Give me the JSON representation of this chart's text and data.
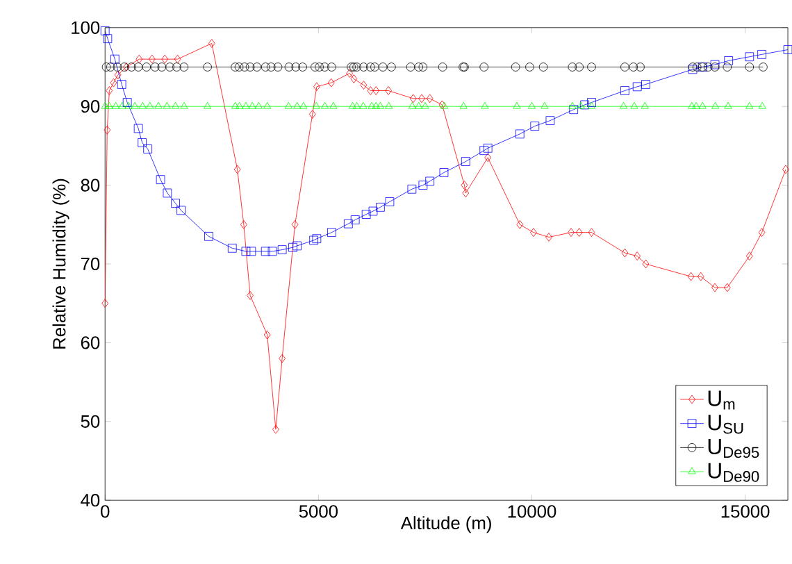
{
  "chart_data": {
    "type": "line",
    "xlabel": "Altitude (m)",
    "ylabel": "Relative Humidity (%)",
    "xlim": [
      0,
      16000
    ],
    "ylim": [
      40,
      100
    ],
    "xticks": [
      0,
      5000,
      10000,
      15000
    ],
    "yticks": [
      40,
      50,
      60,
      70,
      80,
      90,
      100
    ],
    "grid": false,
    "legend": "bottom right",
    "line_style": "solid",
    "series": [
      {
        "name": "U$_{m}$",
        "color": "#ff0000",
        "marker": "diamond",
        "x": [
          0,
          50,
          100,
          200,
          300,
          500,
          800,
          1100,
          1400,
          1700,
          2500,
          3100,
          3250,
          3400,
          3800,
          4000,
          4150,
          4450,
          4860,
          4960,
          5300,
          5730,
          5830,
          6060,
          6220,
          6350,
          6640,
          7220,
          7420,
          7610,
          7900,
          8420,
          8450,
          8970,
          9720,
          10040,
          10400,
          10920,
          11110,
          11400,
          12180,
          12470,
          12670,
          13730,
          13960,
          14290,
          14580,
          15100,
          15390,
          15950
        ],
        "values": [
          65,
          87,
          92,
          93,
          94,
          95,
          96,
          96,
          96,
          96,
          98,
          82,
          75,
          66,
          61,
          49,
          58,
          75,
          89,
          92.5,
          93,
          94.2,
          93.5,
          92.7,
          92,
          92,
          92,
          91,
          91,
          91,
          90.2,
          80,
          79,
          83.5,
          75,
          74,
          73.4,
          74,
          74,
          74,
          71.4,
          71,
          70,
          68.4,
          68.4,
          67,
          67,
          71,
          74,
          82
        ]
      },
      {
        "name": "U$_{SU}$",
        "color": "#0000ff",
        "marker": "square",
        "x": [
          0,
          60,
          230,
          390,
          520,
          780,
          870,
          1000,
          1300,
          1460,
          1650,
          1780,
          2430,
          2980,
          3300,
          3430,
          3760,
          3920,
          4150,
          4400,
          4500,
          4890,
          4960,
          5310,
          5700,
          5860,
          6120,
          6280,
          6450,
          6670,
          7190,
          7450,
          7610,
          7940,
          8450,
          8880,
          8970,
          9720,
          10070,
          10430,
          10980,
          11240,
          11400,
          12180,
          12470,
          12670,
          13770,
          14000,
          14290,
          14610,
          15100,
          15390,
          16000
        ],
        "values": [
          99.6,
          98.6,
          96,
          92.8,
          90.5,
          87.2,
          85.4,
          84.6,
          80.7,
          79,
          77.7,
          76.8,
          73.5,
          72,
          71.6,
          71.6,
          71.6,
          71.6,
          71.8,
          72.1,
          72.3,
          73,
          73.2,
          74,
          75.1,
          75.6,
          76.3,
          76.7,
          77.2,
          77.9,
          79.5,
          80,
          80.5,
          81.6,
          83,
          84.4,
          84.7,
          86.5,
          87.5,
          88.2,
          89.6,
          90.2,
          90.5,
          92,
          92.5,
          92.8,
          94.7,
          95,
          95.3,
          95.8,
          96.3,
          96.6,
          97.2
        ]
      },
      {
        "name": "U$_{De95}$",
        "color": "#000000",
        "marker": "circle",
        "x": [
          30,
          130,
          290,
          450,
          620,
          780,
          970,
          1170,
          1330,
          1520,
          1680,
          1850,
          2400,
          3050,
          3140,
          3270,
          3400,
          3560,
          3760,
          3890,
          4050,
          4310,
          4470,
          4630,
          4920,
          5020,
          5150,
          5310,
          5770,
          5830,
          5900,
          6060,
          6220,
          6320,
          6510,
          6710,
          7160,
          7350,
          7450,
          7910,
          8390,
          8420,
          8880,
          9620,
          9950,
          10270,
          10950,
          11110,
          11400,
          12180,
          12380,
          12540,
          13770,
          13870,
          14000,
          14130,
          14290,
          14580,
          15100,
          15420
        ],
        "values": [
          95,
          95,
          95,
          95,
          95,
          95,
          95,
          95,
          95,
          95,
          95,
          95,
          95,
          95,
          95,
          95,
          95,
          95,
          95,
          95,
          95,
          95,
          95,
          95,
          95,
          95,
          95,
          95,
          95,
          95,
          95,
          95,
          95,
          95,
          95,
          95,
          95,
          95,
          95,
          95,
          95,
          95,
          95,
          95,
          95,
          95,
          95,
          95,
          95,
          95,
          95,
          95,
          95,
          95,
          95,
          95,
          95,
          95,
          95,
          95
        ]
      },
      {
        "name": "U$_{De90}$",
        "color": "#00ff00",
        "marker": "triangle",
        "x": [
          0,
          100,
          250,
          400,
          550,
          700,
          880,
          1050,
          1250,
          1450,
          1650,
          1850,
          2400,
          3050,
          3150,
          3300,
          3450,
          3600,
          3800,
          4300,
          4500,
          4650,
          4950,
          5150,
          5350,
          5800,
          5900,
          6050,
          6250,
          6350,
          6450,
          6650,
          7200,
          7350,
          7500,
          7950,
          8400,
          8900,
          9650,
          10000,
          10300,
          10950,
          11150,
          11400,
          12150,
          12400,
          12650,
          13750,
          13850,
          14000,
          14300,
          14600,
          15100,
          15400
        ],
        "values": [
          90,
          90,
          90,
          90,
          90,
          90,
          90,
          90,
          90,
          90,
          90,
          90,
          90,
          90,
          90,
          90,
          90,
          90,
          90,
          90,
          90,
          90,
          90,
          90,
          90,
          90,
          90,
          90,
          90,
          90,
          90,
          90,
          90,
          90,
          90,
          90,
          90,
          90,
          90,
          90,
          90,
          90,
          90,
          90,
          90,
          90,
          90,
          90,
          90,
          90,
          90,
          90,
          90,
          90
        ]
      }
    ]
  }
}
